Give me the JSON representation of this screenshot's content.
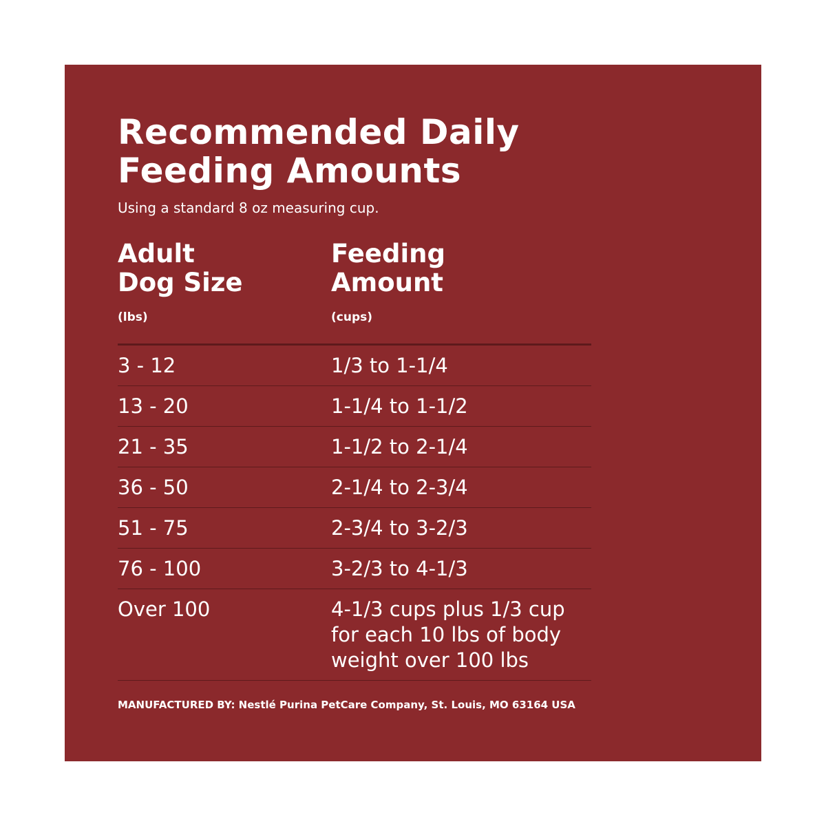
{
  "title": {
    "line1": "Recommended Daily",
    "line2": "Feeding Amounts"
  },
  "subtitle": "Using a standard 8 oz measuring cup.",
  "columns": [
    {
      "line1": "Adult",
      "line2": "Dog Size",
      "unit": "(lbs)"
    },
    {
      "line1": "Feeding",
      "line2": "Amount",
      "unit": "(cups)"
    }
  ],
  "rows": [
    {
      "size": "3 - 12",
      "amount": "1/3 to 1-1/4"
    },
    {
      "size": "13 - 20",
      "amount": "1-1/4 to 1-1/2"
    },
    {
      "size": "21 - 35",
      "amount": "1-1/2 to 2-1/4"
    },
    {
      "size": "36 - 50",
      "amount": "2-1/4 to 2-3/4"
    },
    {
      "size": "51 - 75",
      "amount": "2-3/4 to 3-2/3"
    },
    {
      "size": "76 - 100",
      "amount": "3-2/3 to 4-1/3"
    },
    {
      "size": "Over 100",
      "amount": "4-1/3 cups plus 1/3 cup for each 10 lbs of body weight over 100 lbs"
    }
  ],
  "footer": "MANUFACTURED BY: Nestlé Purina PetCare Company, St. Louis, MO 63164 USA",
  "colors": {
    "panel_background": "#8b292c",
    "divider": "#5e1a1c",
    "text": "#ffffff"
  }
}
